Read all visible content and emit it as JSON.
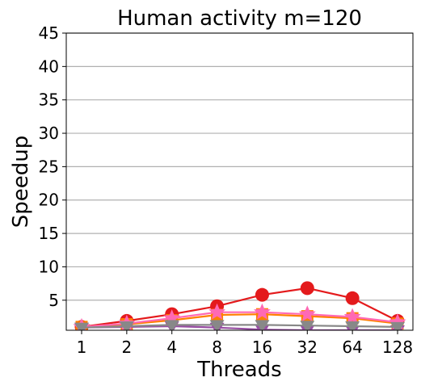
{
  "chart_data": {
    "type": "line",
    "title": "Human activity m=120",
    "xlabel": "Threads",
    "ylabel": "Speedup",
    "categories": [
      "1",
      "2",
      "4",
      "8",
      "16",
      "32",
      "64",
      "128"
    ],
    "ylim": [
      0.5,
      45
    ],
    "yticks": [
      5,
      10,
      15,
      20,
      25,
      30,
      35,
      40,
      45
    ],
    "grid": "horizontal",
    "series": [
      {
        "color": "#e41a1c",
        "marker": "circle",
        "values": [
          1.0,
          1.9,
          2.9,
          4.1,
          5.8,
          6.8,
          5.3,
          1.9
        ]
      },
      {
        "color": "#ff7f00",
        "marker": "square",
        "values": [
          1.0,
          1.4,
          2.0,
          2.8,
          2.9,
          2.6,
          2.3,
          1.5
        ]
      },
      {
        "color": "#984ea3",
        "marker": "triangle-down",
        "values": [
          0.9,
          1.0,
          1.1,
          0.9,
          0.6,
          0.5,
          0.5,
          0.5
        ]
      },
      {
        "color": "#ff69b4",
        "marker": "star",
        "values": [
          1.0,
          1.5,
          2.3,
          3.2,
          3.2,
          2.9,
          2.5,
          1.7
        ]
      },
      {
        "color": "#888888",
        "marker": "triangle-down",
        "values": [
          0.9,
          1.1,
          1.3,
          1.3,
          1.3,
          1.2,
          1.1,
          1.0
        ]
      }
    ]
  }
}
